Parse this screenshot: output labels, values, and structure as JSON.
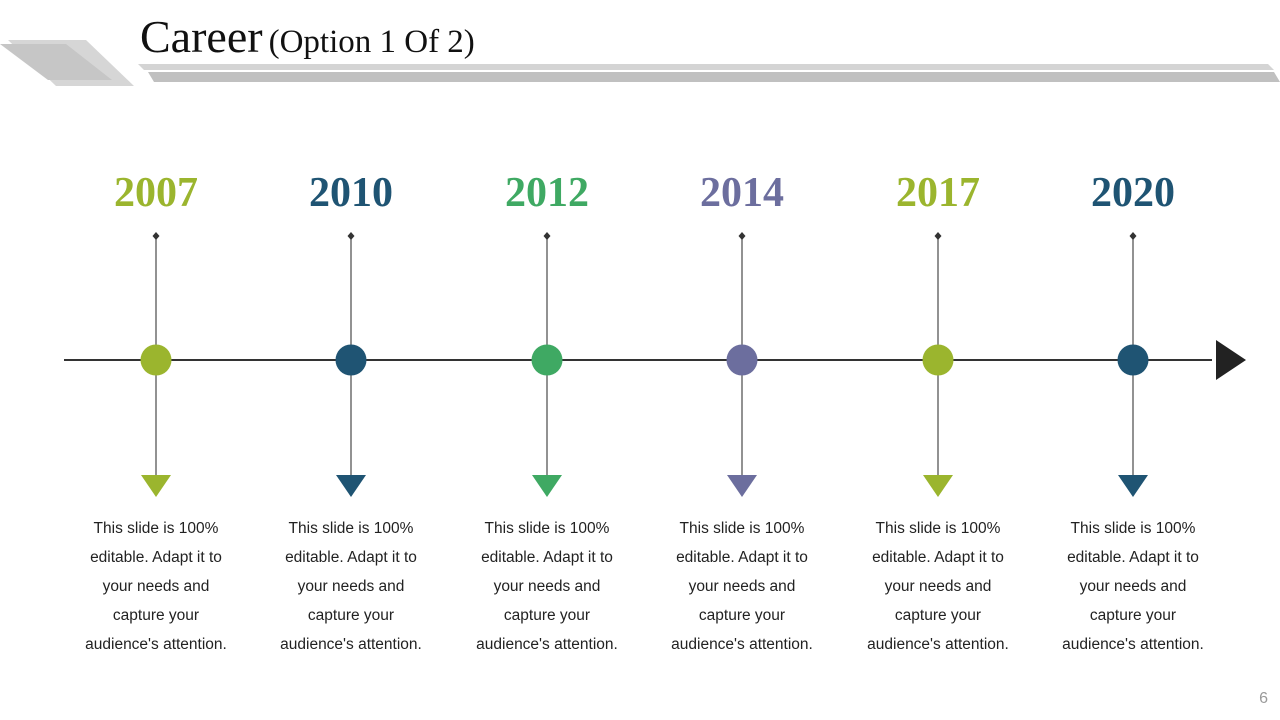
{
  "header": {
    "title": "Career",
    "subtitle": "(Option 1 Of 2)"
  },
  "timeline": {
    "milestones": [
      {
        "year": "2007",
        "color": "#9BB52E",
        "text": "This slide is 100% editable. Adapt it to your needs and capture your audience's attention."
      },
      {
        "year": "2010",
        "color": "#1F5473",
        "text": "This slide is 100% editable. Adapt it to your needs and capture your audience's attention."
      },
      {
        "year": "2012",
        "color": "#3FA963",
        "text": "This slide is 100% editable. Adapt it to your needs and capture your audience's attention."
      },
      {
        "year": "2014",
        "color": "#6C6E9E",
        "text": "This slide is 100% editable. Adapt it to your needs and capture your audience's attention."
      },
      {
        "year": "2017",
        "color": "#9BB52E",
        "text": "This slide is 100% editable. Adapt it to your needs and capture your audience's attention."
      },
      {
        "year": "2020",
        "color": "#1F5473",
        "text": "This slide is 100% editable. Adapt it to your needs and capture your audience's attention."
      }
    ]
  },
  "footer": {
    "page_number": "6"
  }
}
